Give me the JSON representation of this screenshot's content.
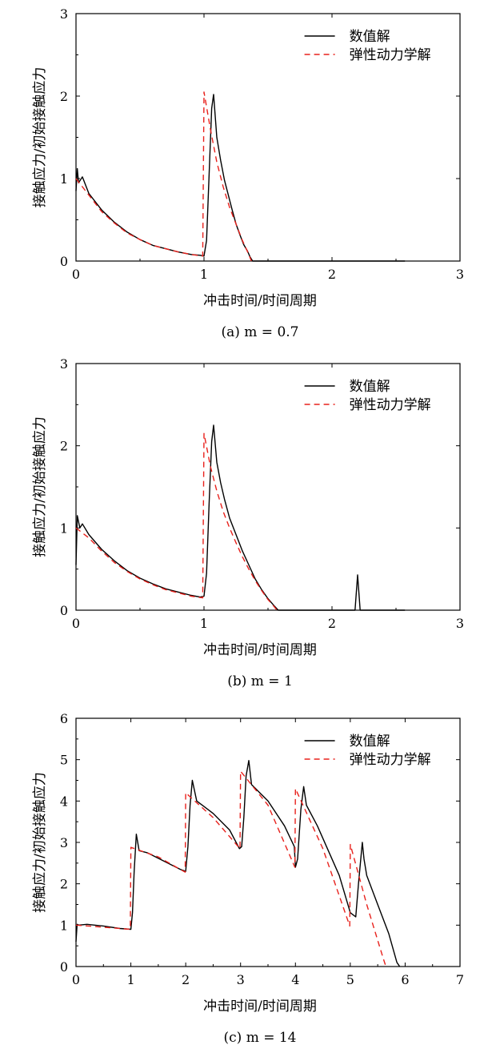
{
  "chart_data": [
    {
      "type": "line",
      "caption": "(a) m = 0.7",
      "xlabel": "冲击时间/时间周期",
      "ylabel": "接触应力/初始接触应力",
      "xlim": [
        0,
        3
      ],
      "ylim": [
        0,
        3
      ],
      "xticks": [
        0,
        1,
        2,
        3
      ],
      "yticks": [
        0,
        1,
        2,
        3
      ],
      "grid": false,
      "legend_position": "top-right",
      "series": [
        {
          "name": "数值解",
          "color": "#000000",
          "dash": "solid",
          "x": [
            0,
            0.01,
            0.02,
            0.05,
            0.1,
            0.2,
            0.3,
            0.4,
            0.5,
            0.6,
            0.7,
            0.8,
            0.9,
            0.97,
            1.0,
            1.02,
            1.04,
            1.06,
            1.075,
            1.1,
            1.13,
            1.16,
            1.19,
            1.22,
            1.25,
            1.28,
            1.31,
            1.34,
            1.36,
            1.38,
            2.57
          ],
          "y": [
            0.85,
            1.12,
            0.95,
            1.02,
            0.82,
            0.62,
            0.47,
            0.35,
            0.26,
            0.19,
            0.15,
            0.11,
            0.08,
            0.07,
            0.06,
            0.25,
            1.05,
            1.85,
            2.02,
            1.5,
            1.22,
            0.98,
            0.8,
            0.62,
            0.45,
            0.32,
            0.2,
            0.12,
            0.05,
            0.0,
            0.0
          ]
        },
        {
          "name": "弹性动力学解",
          "color": "#e8211c",
          "dash": "dashed",
          "x": [
            0,
            0.1,
            0.2,
            0.3,
            0.4,
            0.5,
            0.6,
            0.7,
            0.8,
            0.9,
            0.99,
            1.0,
            1.05,
            1.1,
            1.15,
            1.2,
            1.25,
            1.3,
            1.35,
            1.37
          ],
          "y": [
            1.0,
            0.8,
            0.6,
            0.46,
            0.34,
            0.26,
            0.19,
            0.15,
            0.11,
            0.08,
            0.06,
            2.05,
            1.6,
            1.2,
            0.9,
            0.65,
            0.45,
            0.25,
            0.08,
            0.0
          ]
        }
      ]
    },
    {
      "type": "line",
      "caption": "(b) m = 1",
      "xlabel": "冲击时间/时间周期",
      "ylabel": "接触应力/初始接触应力",
      "xlim": [
        0,
        3
      ],
      "ylim": [
        0,
        3
      ],
      "xticks": [
        0,
        1,
        2,
        3
      ],
      "yticks": [
        0,
        1,
        2,
        3
      ],
      "grid": false,
      "legend_position": "top-right",
      "series": [
        {
          "name": "数值解",
          "color": "#000000",
          "dash": "solid",
          "x": [
            0,
            0.01,
            0.03,
            0.05,
            0.1,
            0.2,
            0.3,
            0.4,
            0.5,
            0.6,
            0.7,
            0.8,
            0.9,
            0.97,
            1.0,
            1.02,
            1.04,
            1.06,
            1.075,
            1.1,
            1.13,
            1.16,
            1.2,
            1.25,
            1.3,
            1.35,
            1.4,
            1.45,
            1.5,
            1.55,
            1.58,
            2.18,
            2.2,
            2.22,
            2.57
          ],
          "y": [
            0.55,
            1.15,
            1.0,
            1.05,
            0.92,
            0.74,
            0.6,
            0.48,
            0.39,
            0.32,
            0.26,
            0.22,
            0.18,
            0.16,
            0.17,
            0.45,
            1.3,
            2.05,
            2.25,
            1.8,
            1.55,
            1.35,
            1.12,
            0.92,
            0.72,
            0.55,
            0.38,
            0.25,
            0.14,
            0.05,
            0.0,
            0.0,
            0.43,
            0.0,
            0.0
          ]
        },
        {
          "name": "弹性动力学解",
          "color": "#e8211c",
          "dash": "dashed",
          "x": [
            0,
            0.1,
            0.2,
            0.3,
            0.4,
            0.5,
            0.6,
            0.7,
            0.8,
            0.9,
            0.99,
            1.0,
            1.05,
            1.1,
            1.15,
            1.2,
            1.25,
            1.3,
            1.35,
            1.4,
            1.45,
            1.5,
            1.55,
            1.57
          ],
          "y": [
            1.0,
            0.88,
            0.72,
            0.58,
            0.47,
            0.38,
            0.31,
            0.25,
            0.21,
            0.17,
            0.15,
            2.15,
            1.75,
            1.45,
            1.2,
            1.0,
            0.82,
            0.65,
            0.5,
            0.36,
            0.24,
            0.13,
            0.04,
            0.0
          ]
        }
      ]
    },
    {
      "type": "line",
      "caption": "(c) m = 14",
      "xlabel": "冲击时间/时间周期",
      "ylabel": "接触应力/初始接触应力",
      "xlim": [
        0,
        7
      ],
      "ylim": [
        0,
        6
      ],
      "xticks": [
        0,
        1,
        2,
        3,
        4,
        5,
        6,
        7
      ],
      "yticks": [
        0,
        1,
        2,
        3,
        4,
        5,
        6
      ],
      "grid": false,
      "legend_position": "top-right",
      "series": [
        {
          "name": "数值解",
          "color": "#000000",
          "dash": "solid",
          "x": [
            0,
            0.02,
            0.05,
            0.2,
            0.5,
            0.8,
            1.0,
            1.03,
            1.06,
            1.1,
            1.15,
            1.3,
            1.6,
            1.9,
            2.0,
            2.04,
            2.08,
            2.12,
            2.2,
            2.5,
            2.8,
            2.98,
            3.02,
            3.06,
            3.1,
            3.15,
            3.2,
            3.5,
            3.8,
            3.98,
            4.0,
            4.04,
            4.1,
            4.15,
            4.2,
            4.4,
            4.6,
            4.8,
            5.0,
            5.1,
            5.15,
            5.22,
            5.25,
            5.3,
            5.5,
            5.7,
            5.85,
            5.9
          ],
          "y": [
            0.6,
            1.02,
            1.0,
            1.02,
            0.98,
            0.92,
            0.9,
            1.3,
            2.3,
            3.2,
            2.8,
            2.75,
            2.55,
            2.35,
            2.3,
            2.9,
            3.9,
            4.5,
            4.0,
            3.7,
            3.3,
            2.85,
            2.9,
            3.6,
            4.6,
            4.98,
            4.4,
            4.0,
            3.4,
            2.9,
            2.4,
            2.6,
            3.8,
            4.35,
            3.9,
            3.4,
            2.8,
            2.2,
            1.3,
            1.2,
            2.0,
            3.0,
            2.6,
            2.2,
            1.5,
            0.8,
            0.1,
            0.0
          ]
        },
        {
          "name": "弹性动力学解",
          "color": "#e8211c",
          "dash": "dashed",
          "x": [
            0,
            0.5,
            0.99,
            1.0,
            1.5,
            1.99,
            2.0,
            2.5,
            2.99,
            3.0,
            3.5,
            3.99,
            4.0,
            4.5,
            4.99,
            5.0,
            5.3,
            5.6,
            5.65
          ],
          "y": [
            1.0,
            0.95,
            0.9,
            2.88,
            2.65,
            2.28,
            4.2,
            3.6,
            2.85,
            4.72,
            3.9,
            2.4,
            4.3,
            2.85,
            0.98,
            2.95,
            1.5,
            0.2,
            0.0
          ]
        }
      ]
    }
  ]
}
